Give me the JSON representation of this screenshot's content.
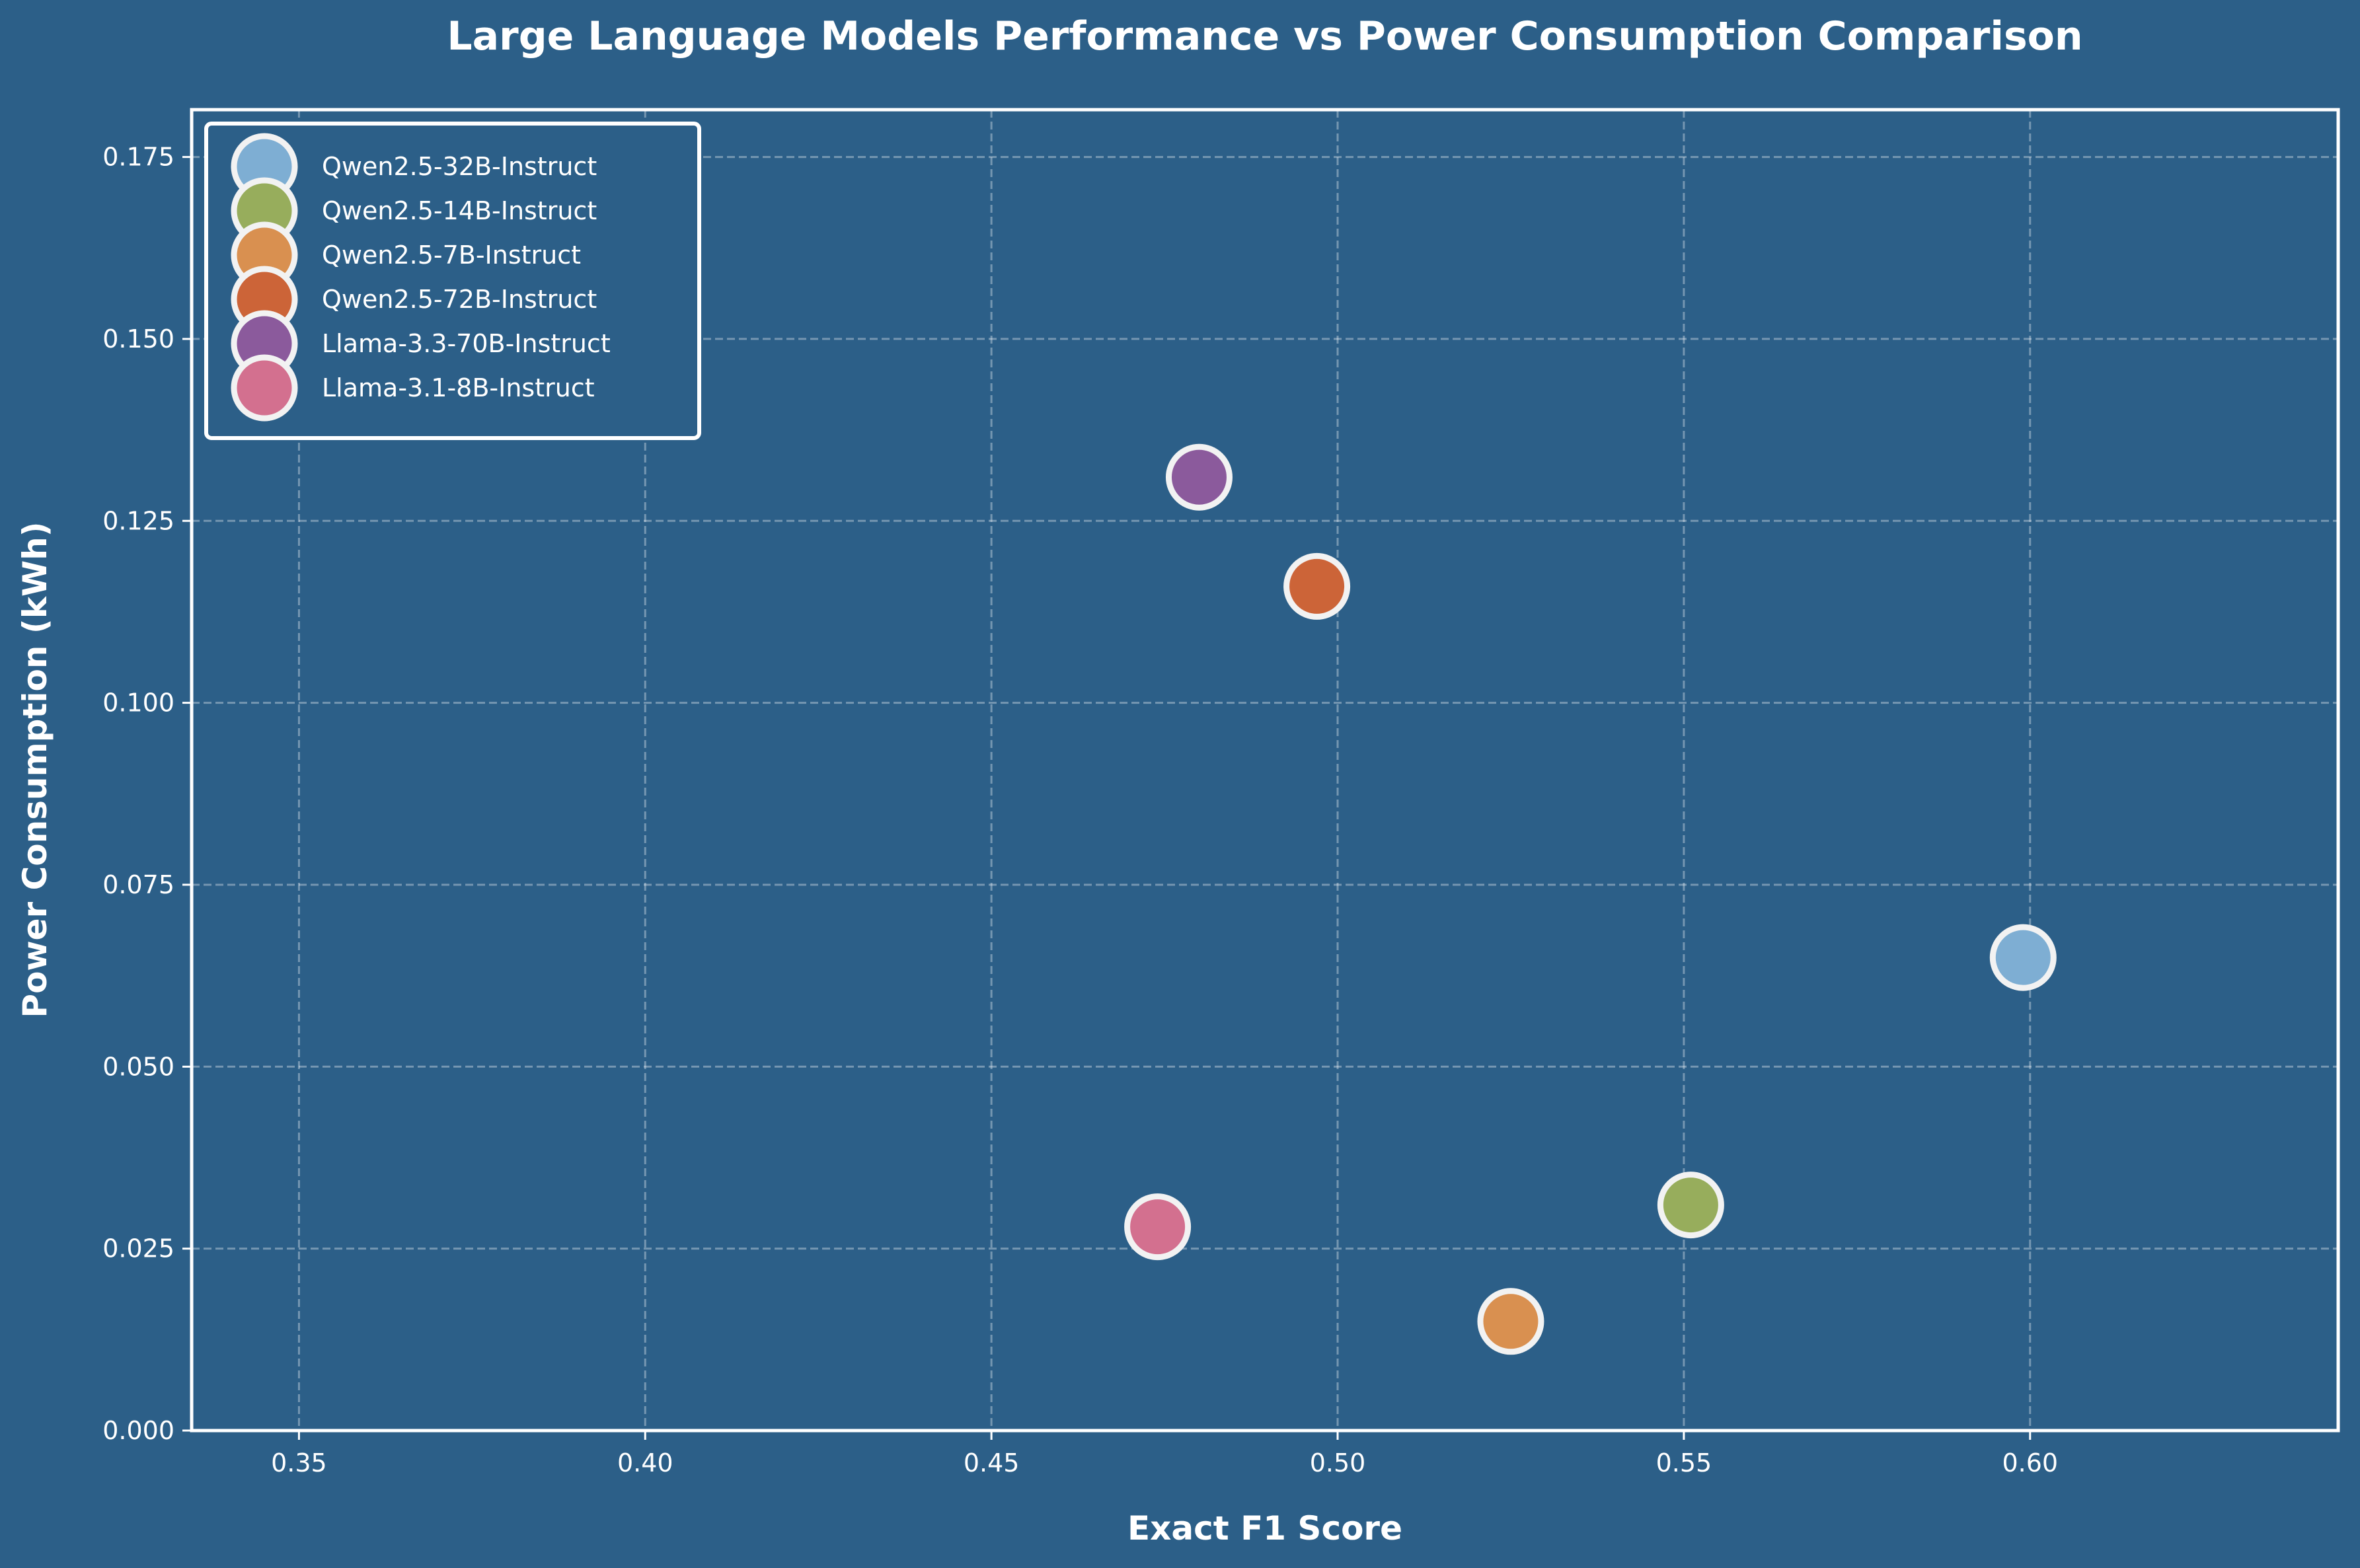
{
  "chart_data": {
    "type": "scatter",
    "title": "Large Language Models Performance vs Power Consumption Comparison",
    "xlabel": "Exact F1 Score",
    "ylabel": "Power Consumption (kWh)",
    "xlim": [
      0.3345,
      0.6445
    ],
    "ylim": [
      0.0,
      0.1815
    ],
    "xticks": [
      "0.35",
      "0.40",
      "0.45",
      "0.50",
      "0.55",
      "0.60"
    ],
    "yticks": [
      "0.000",
      "0.025",
      "0.050",
      "0.075",
      "0.100",
      "0.125",
      "0.150",
      "0.175"
    ],
    "grid": true,
    "legend_position": "top-left",
    "series": [
      {
        "name": "Qwen2.5-32B-Instruct",
        "x": 0.599,
        "y": 0.065,
        "color": "#7eaed3"
      },
      {
        "name": "Qwen2.5-14B-Instruct",
        "x": 0.551,
        "y": 0.031,
        "color": "#97ad5c"
      },
      {
        "name": "Qwen2.5-7B-Instruct",
        "x": 0.525,
        "y": 0.015,
        "color": "#d99050"
      },
      {
        "name": "Qwen2.5-72B-Instruct",
        "x": 0.497,
        "y": 0.116,
        "color": "#cc6438"
      },
      {
        "name": "Llama-3.3-70B-Instruct",
        "x": 0.48,
        "y": 0.131,
        "color": "#8b5a9c"
      },
      {
        "name": "Llama-3.1-8B-Instruct",
        "x": 0.474,
        "y": 0.028,
        "color": "#d3708f"
      }
    ]
  },
  "colors": {
    "background": "#2c5f88",
    "text": "#ffffff",
    "marker_edge": "#f2f2f2"
  }
}
